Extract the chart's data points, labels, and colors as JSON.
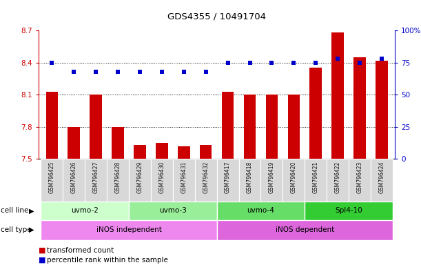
{
  "title": "GDS4355 / 10491704",
  "samples": [
    "GSM796425",
    "GSM796426",
    "GSM796427",
    "GSM796428",
    "GSM796429",
    "GSM796430",
    "GSM796431",
    "GSM796432",
    "GSM796417",
    "GSM796418",
    "GSM796419",
    "GSM796420",
    "GSM796421",
    "GSM796422",
    "GSM796423",
    "GSM796424"
  ],
  "transformed_count": [
    8.13,
    7.8,
    8.1,
    7.8,
    7.63,
    7.65,
    7.62,
    7.63,
    8.13,
    8.1,
    8.1,
    8.1,
    8.35,
    8.68,
    8.45,
    8.42
  ],
  "percentile_rank": [
    75,
    68,
    68,
    68,
    68,
    68,
    68,
    68,
    75,
    75,
    75,
    75,
    75,
    78,
    75,
    78
  ],
  "ylim_left": [
    7.5,
    8.7
  ],
  "ylim_right": [
    0,
    100
  ],
  "yticks_left": [
    7.5,
    7.8,
    8.1,
    8.4,
    8.7
  ],
  "yticks_right": [
    0,
    25,
    50,
    75,
    100
  ],
  "grid_values": [
    7.8,
    8.1,
    8.4
  ],
  "cell_line_groups": [
    {
      "label": "uvmo-2",
      "start": 0,
      "end": 3,
      "color": "#ccffcc"
    },
    {
      "label": "uvmo-3",
      "start": 4,
      "end": 7,
      "color": "#99ee99"
    },
    {
      "label": "uvmo-4",
      "start": 8,
      "end": 11,
      "color": "#66dd66"
    },
    {
      "label": "Spl4-10",
      "start": 12,
      "end": 15,
      "color": "#33cc33"
    }
  ],
  "cell_type_groups": [
    {
      "label": "iNOS independent",
      "start": 0,
      "end": 7,
      "color": "#ee88ee"
    },
    {
      "label": "iNOS dependent",
      "start": 8,
      "end": 15,
      "color": "#dd66dd"
    }
  ],
  "bar_color": "#cc0000",
  "dot_color": "#0000cc",
  "left_axis_color": "#cc0000",
  "right_axis_color": "#0000cc"
}
